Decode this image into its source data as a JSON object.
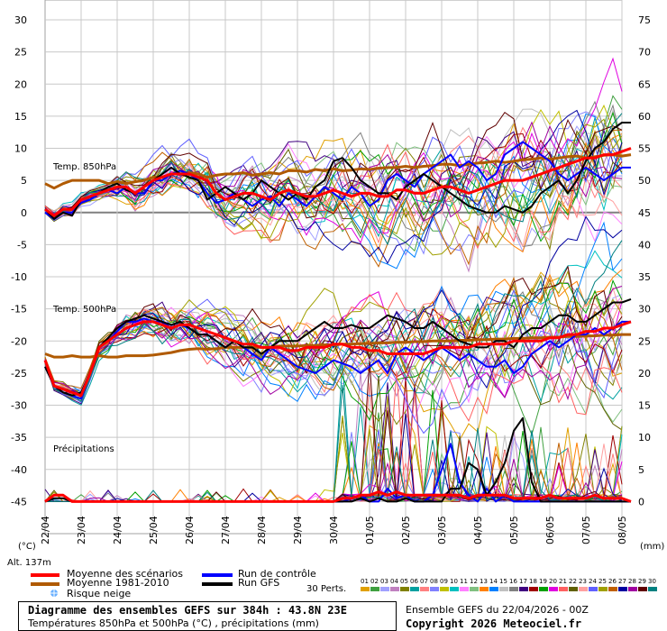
{
  "chart_data": {
    "type": "line",
    "title": "Diagramme des ensembles GEFS sur 384h : 43.8N 23E",
    "subtitle": "Températures 850hPa et 500hPa (°C) , précipitations (mm)",
    "run_info": "Ensemble GEFS du 22/04/2026 - 00Z",
    "copyright": "Copyright 2026 Meteociel.fr",
    "altitude": "Alt. 137m",
    "panel_labels": {
      "t850": "Temp. 850hPa",
      "t500": "Temp. 500hPa",
      "precip": "Précipitations"
    },
    "left_unit": "(°C)",
    "right_unit": "(mm)",
    "left_ticks": [
      30,
      25,
      20,
      15,
      10,
      5,
      0,
      -5,
      -10,
      -15,
      -20,
      -25,
      -30,
      -35,
      -40,
      -45
    ],
    "right_ticks": [
      75,
      70,
      65,
      60,
      55,
      50,
      45,
      40,
      35,
      30,
      25,
      20,
      15,
      10,
      5,
      0
    ],
    "x_dates": [
      "23/04",
      "24/04",
      "25/04",
      "26/04",
      "27/04",
      "28/04",
      "29/04",
      "30/04",
      "01/05",
      "02/05",
      "03/05",
      "04/05",
      "05/05",
      "06/05",
      "07/05",
      "08/05"
    ],
    "ylim_left": [
      -50,
      30
    ],
    "members_label": "30 Perts.",
    "member_ids": [
      "01",
      "02",
      "03",
      "04",
      "05",
      "06",
      "07",
      "08",
      "09",
      "10",
      "11",
      "12",
      "13",
      "14",
      "15",
      "16",
      "17",
      "18",
      "19",
      "20",
      "21",
      "22",
      "23",
      "24",
      "25",
      "26",
      "27",
      "28",
      "29",
      "30"
    ],
    "member_colors": [
      "#e0a000",
      "#40a040",
      "#a0a0ff",
      "#c080c0",
      "#808000",
      "#00a0a0",
      "#ff8080",
      "#8080ff",
      "#c0c000",
      "#00c0c0",
      "#ff80ff",
      "#80c080",
      "#ff8000",
      "#0080ff",
      "#c0c0c0",
      "#808080",
      "#400080",
      "#a00000",
      "#00a000",
      "#e000e0",
      "#ff6060",
      "#606000",
      "#ffa0a0",
      "#6060ff",
      "#a0a000",
      "#c06000",
      "#0000a0",
      "#a000a0",
      "#600000",
      "#008080"
    ],
    "legend": {
      "mean": "Moyenne des scénarios",
      "clim": "Moyenne 1981-2010",
      "snow": "Risque neige",
      "control": "Run de contrôle",
      "gfs": "Run GFS"
    },
    "colors": {
      "mean": "#ff0000",
      "clim": "#b05a00",
      "control": "#0000ff",
      "gfs": "#000000",
      "zero": "#808080"
    },
    "t850": {
      "mean": [
        0.5,
        -0.5,
        0.5,
        0.5,
        2,
        2.5,
        3,
        3.5,
        4,
        4,
        3,
        4,
        5,
        5.5,
        6,
        6,
        6,
        5.5,
        5,
        3,
        2,
        2.5,
        3,
        3,
        2.5,
        2,
        3,
        3.5,
        3,
        2.5,
        2.5,
        3,
        3.5,
        3,
        2.5,
        3,
        3,
        2.5,
        2.5,
        3.5,
        3.5,
        3,
        3,
        3.5,
        4,
        4,
        3.5,
        3,
        3.5,
        4,
        4.5,
        5,
        5,
        5,
        5.5,
        6,
        6.5,
        7,
        7.5,
        8,
        8.5,
        8.5,
        9,
        9,
        9.5,
        10
      ],
      "clim": [
        4.5,
        3.8,
        4.5,
        5,
        5,
        5,
        5,
        4.5,
        4.8,
        4.5,
        4.8,
        5,
        5.5,
        5.5,
        6,
        6,
        6.2,
        6,
        5.5,
        5.8,
        6,
        6,
        6.2,
        5.8,
        6,
        6.2,
        6,
        6.5,
        6.5,
        6.3,
        6.7,
        6.5,
        6.8,
        6.5,
        6.6,
        6.8,
        6.7,
        6.9,
        7,
        7,
        7.2,
        7,
        7.2,
        7.3,
        7.5,
        7.5,
        7.3,
        7.5,
        7.7,
        7.8,
        8,
        7.8,
        8,
        8.2,
        8.3,
        8.5,
        8.3,
        8.5,
        8.7,
        8.8,
        8.5,
        8.7,
        8.9,
        9,
        8.8,
        9
      ],
      "control": [
        0,
        -1,
        0,
        0,
        1.5,
        2,
        3,
        3.5,
        3,
        4,
        3,
        3,
        5,
        5,
        6,
        6.5,
        6,
        5,
        3,
        1.5,
        2,
        3,
        2,
        1,
        2,
        2.5,
        1,
        3,
        2,
        1,
        2.5,
        4,
        3,
        2,
        4,
        3,
        1,
        2,
        5,
        6,
        5,
        4,
        6,
        7,
        8,
        9,
        7,
        8,
        7,
        5,
        6,
        9,
        10,
        11,
        10,
        9,
        8,
        6,
        5,
        6,
        7,
        6,
        5,
        6,
        7,
        7
      ],
      "gfs": [
        0.5,
        -1,
        0,
        -0.5,
        2,
        2.5,
        3,
        4,
        4.5,
        3.5,
        3,
        4,
        5,
        6,
        7,
        6,
        5.5,
        5,
        2,
        3,
        4,
        3,
        2,
        3,
        5,
        4,
        3,
        2,
        3,
        2,
        4,
        5,
        8,
        8.5,
        7,
        5,
        4,
        3,
        3,
        2,
        4,
        5,
        6,
        5,
        4,
        3,
        2,
        1,
        0.5,
        0,
        0,
        1,
        0.5,
        0,
        1,
        3,
        4,
        5,
        3,
        5,
        8,
        10,
        11,
        13,
        14,
        14
      ]
    },
    "t500": {
      "mean": [
        -23,
        -27,
        -27.5,
        -28,
        -28.5,
        -25,
        -21,
        -20,
        -19,
        -18,
        -17.5,
        -17,
        -17,
        -17.5,
        -18,
        -17.5,
        -17.5,
        -18,
        -18.5,
        -19,
        -19.5,
        -20,
        -20.5,
        -20.5,
        -21,
        -21,
        -21,
        -21.5,
        -21.5,
        -21,
        -21,
        -21,
        -20.5,
        -20.5,
        -21,
        -21,
        -21.5,
        -21.5,
        -22,
        -22,
        -22,
        -22,
        -22,
        -21.5,
        -21,
        -21,
        -21,
        -21,
        -20.5,
        -20.5,
        -20.5,
        -20.5,
        -20,
        -20,
        -20,
        -20,
        -19.5,
        -19.5,
        -19,
        -19,
        -18.5,
        -18.5,
        -18,
        -18,
        -17.5,
        -17
      ],
      "clim": [
        -22,
        -22.5,
        -22.5,
        -22.3,
        -22.5,
        -22.5,
        -22.3,
        -22.5,
        -22.5,
        -22.3,
        -22.3,
        -22.3,
        -22.2,
        -22,
        -21.8,
        -21.5,
        -21.3,
        -21.2,
        -21.3,
        -21.2,
        -21,
        -21,
        -21,
        -21,
        -21,
        -21,
        -20.8,
        -20.8,
        -20.8,
        -20.7,
        -20.7,
        -20.6,
        -20.6,
        -20.5,
        -20.5,
        -20.4,
        -20.4,
        -20.3,
        -20.3,
        -20.2,
        -20.2,
        -20.1,
        -20.1,
        -20,
        -20,
        -20,
        -19.9,
        -19.9,
        -19.8,
        -19.8,
        -19.7,
        -19.7,
        -19.6,
        -19.6,
        -19.5,
        -19.5,
        -19.4,
        -19.4,
        -19.3,
        -19.3,
        -19.2,
        -19.2,
        -19.1,
        -19.1,
        -19,
        -19
      ],
      "control": [
        -24,
        -27,
        -28,
        -28.5,
        -29,
        -25,
        -21,
        -20,
        -18.5,
        -17,
        -17,
        -16.5,
        -17,
        -17,
        -18,
        -17.5,
        -18,
        -19,
        -19,
        -20,
        -21,
        -20,
        -21,
        -22,
        -23,
        -21,
        -22,
        -23,
        -24,
        -24.5,
        -25,
        -24,
        -23,
        -23.5,
        -24,
        -25,
        -24,
        -23,
        -25,
        -22,
        -21,
        -22,
        -23,
        -22,
        -21,
        -22,
        -23,
        -22,
        -23,
        -24,
        -24,
        -23,
        -25,
        -24,
        -22,
        -21,
        -20,
        -21,
        -20,
        -19,
        -19,
        -18,
        -19,
        -18,
        -17,
        -17
      ],
      "gfs": [
        -24,
        -27,
        -28,
        -28.5,
        -28,
        -25,
        -21,
        -19.5,
        -18,
        -17,
        -16.5,
        -16,
        -16.5,
        -17,
        -17.5,
        -17,
        -18,
        -19,
        -19,
        -20,
        -21,
        -20,
        -21,
        -21,
        -22,
        -21,
        -20,
        -20,
        -20,
        -19,
        -18,
        -17,
        -18,
        -18,
        -17.5,
        -18,
        -18,
        -17,
        -16,
        -16.5,
        -17,
        -18,
        -18,
        -17,
        -18,
        -19,
        -20,
        -20.5,
        -21,
        -21,
        -20,
        -20,
        -21,
        -19,
        -18,
        -18,
        -17,
        -16,
        -16,
        -17,
        -17,
        -16,
        -15,
        -14,
        -14,
        -13.5
      ]
    },
    "precip_mm": {
      "mean": [
        0,
        1,
        1,
        0,
        0,
        0,
        0,
        0,
        0,
        0,
        0,
        0,
        0,
        0,
        0,
        0,
        0,
        0,
        0,
        0,
        0,
        0,
        0,
        0,
        0,
        0,
        0,
        0,
        0,
        0,
        0,
        0,
        0,
        0.5,
        0.5,
        1,
        1,
        1.5,
        1,
        1.5,
        1,
        1,
        1,
        1,
        1,
        1,
        1,
        0.5,
        1,
        1,
        1,
        1,
        0.5,
        0.5,
        0.5,
        0.5,
        1,
        0.5,
        0.5,
        0.5,
        0.5,
        1,
        0.5,
        0.5,
        0.5,
        0
      ],
      "control": [
        0,
        1,
        1,
        0,
        0,
        0,
        0,
        0,
        0,
        0,
        0,
        0,
        0,
        0,
        0,
        0,
        0,
        0,
        0,
        0,
        0,
        0,
        0,
        0,
        0,
        0,
        0,
        0,
        0,
        0,
        0,
        0,
        0,
        0,
        0.5,
        1,
        0,
        0,
        2,
        0.5,
        1,
        0,
        0,
        1,
        5,
        9,
        3,
        1,
        0,
        2,
        0,
        1,
        0,
        0,
        0,
        0,
        0,
        0,
        0,
        0,
        0,
        0,
        0,
        0,
        0,
        0
      ],
      "gfs": [
        0,
        0.5,
        0.5,
        0,
        0,
        0,
        0,
        0,
        0,
        0,
        0,
        0,
        0,
        0,
        0,
        0,
        0,
        0,
        0,
        0,
        0,
        0,
        0,
        0,
        0,
        0,
        0,
        0,
        0,
        0,
        0,
        0,
        0,
        0,
        0,
        0.5,
        0,
        0.5,
        0,
        0,
        0.5,
        0,
        0,
        0,
        0,
        2,
        2,
        6,
        5,
        1,
        3,
        6,
        11,
        13,
        3,
        0,
        0,
        0,
        0,
        0,
        0,
        0,
        0,
        0,
        0,
        0
      ]
    }
  }
}
